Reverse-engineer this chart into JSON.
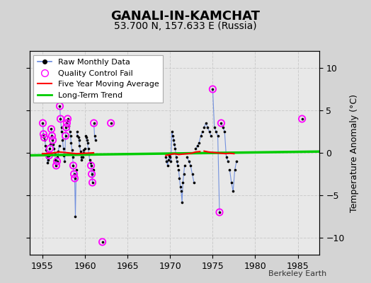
{
  "title": "GANALI-IN-KAMCHAT",
  "subtitle": "53.700 N, 157.633 E (Russia)",
  "ylabel": "Temperature Anomaly (°C)",
  "xlabel_credit": "Berkeley Earth",
  "xlim": [
    1953.5,
    1987.5
  ],
  "ylim": [
    -12,
    12
  ],
  "yticks": [
    -10,
    -5,
    0,
    5,
    10
  ],
  "xticks": [
    1955,
    1960,
    1965,
    1970,
    1975,
    1980,
    1985
  ],
  "bg_color": "#d4d4d4",
  "plot_bg_color": "#e8e8e8",
  "raw_segments": [
    [
      [
        1955.04,
        1955.12,
        1955.21,
        1955.29,
        1955.37,
        1955.46,
        1955.54,
        1955.62,
        1955.71,
        1955.79,
        1955.87,
        1955.96
      ],
      [
        3.5,
        2.2,
        1.8,
        1.5,
        0.8,
        0.3,
        -0.5,
        -1.2,
        -0.8,
        -0.3,
        0.5,
        1.0
      ]
    ],
    [
      [
        1956.04,
        1956.12,
        1956.21,
        1956.29,
        1956.37,
        1956.46,
        1956.54,
        1956.62,
        1956.71,
        1956.79,
        1956.87,
        1956.96
      ],
      [
        2.8,
        2.0,
        1.5,
        1.0,
        0.5,
        -0.2,
        -0.8,
        -1.5,
        -1.0,
        -0.5,
        0.2,
        0.8
      ]
    ],
    [
      [
        1957.04,
        1957.12,
        1957.21,
        1957.29,
        1957.37,
        1957.46,
        1957.54,
        1957.62,
        1957.71,
        1957.79,
        1957.87,
        1957.96
      ],
      [
        5.5,
        4.0,
        3.0,
        2.5,
        1.5,
        0.5,
        -0.3,
        -1.0,
        2.0,
        3.0,
        3.5,
        4.0
      ]
    ],
    [
      [
        1958.04,
        1958.12,
        1958.21,
        1958.29,
        1958.37,
        1958.46,
        1958.54,
        1958.62,
        1958.71,
        1958.79,
        1958.87,
        1958.96
      ],
      [
        3.8,
        3.2,
        2.5,
        2.0,
        1.2,
        0.3,
        -0.5,
        -1.5,
        -2.5,
        -3.0,
        -7.5,
        -2.0
      ]
    ],
    [
      [
        1959.04,
        1959.12,
        1959.21,
        1959.29,
        1959.37,
        1959.46,
        1959.54,
        1959.62,
        1959.71,
        1959.79,
        1959.87,
        1959.96
      ],
      [
        2.5,
        2.0,
        1.8,
        1.5,
        0.8,
        0.2,
        -0.5,
        -0.8,
        -0.5,
        0.0,
        0.3,
        0.5
      ]
    ],
    [
      [
        1960.04,
        1960.12,
        1960.21,
        1960.29,
        1960.37,
        1960.46,
        1960.54,
        1960.62,
        1960.71,
        1960.79,
        1960.87,
        1960.96
      ],
      [
        2.0,
        1.8,
        1.5,
        1.2,
        0.5,
        -0.2,
        -0.8,
        -1.2,
        -1.5,
        -2.5,
        -3.5,
        -2.0
      ]
    ],
    [
      [
        1961.04,
        1961.12,
        1961.21
      ],
      [
        3.5,
        2.0,
        1.5
      ]
    ],
    [
      [
        1962.04
      ],
      [
        -10.5
      ]
    ],
    [
      [
        1963.04
      ],
      [
        3.5
      ]
    ],
    [
      [
        1969.5,
        1969.6,
        1969.7,
        1969.8,
        1969.9
      ],
      [
        -0.5,
        -1.0,
        -1.5,
        -0.8,
        -0.3
      ]
    ],
    [
      [
        1970.0,
        1970.1,
        1970.2,
        1970.3,
        1970.4,
        1970.5,
        1970.6,
        1970.7,
        1970.8,
        1970.9
      ],
      [
        -0.5,
        -1.0,
        2.5,
        2.0,
        1.5,
        1.0,
        0.5,
        -0.5,
        -1.0,
        -1.5
      ]
    ],
    [
      [
        1971.0,
        1971.1,
        1971.2,
        1971.3,
        1971.4,
        1971.5,
        1971.6,
        1971.7
      ],
      [
        -2.0,
        -3.0,
        -4.0,
        -4.5,
        -5.8,
        -3.5,
        -2.5,
        -1.5
      ]
    ],
    [
      [
        1972.0,
        1972.2,
        1972.4,
        1972.6,
        1972.8
      ],
      [
        -0.5,
        -1.0,
        -1.5,
        -2.5,
        -3.5
      ]
    ],
    [
      [
        1973.0,
        1973.2,
        1973.4,
        1973.6,
        1973.8
      ],
      [
        0.5,
        0.8,
        1.2,
        2.0,
        2.5
      ]
    ],
    [
      [
        1974.0,
        1974.2,
        1974.4,
        1974.6,
        1974.8
      ],
      [
        3.0,
        3.5,
        3.0,
        2.5,
        2.0
      ]
    ],
    [
      [
        1975.0,
        1975.2,
        1975.4,
        1975.6,
        1975.8
      ],
      [
        7.5,
        3.0,
        2.5,
        2.0,
        -7.0
      ]
    ],
    [
      [
        1976.0,
        1976.2,
        1976.4,
        1976.6,
        1976.8
      ],
      [
        3.5,
        3.0,
        2.5,
        -0.5,
        -1.0
      ]
    ],
    [
      [
        1977.0,
        1977.2,
        1977.4,
        1977.6,
        1977.8
      ],
      [
        -2.0,
        -3.5,
        -4.5,
        -2.0,
        -1.0
      ]
    ],
    [
      [
        1985.5
      ],
      [
        4.0
      ]
    ]
  ],
  "qc_fail_points": [
    [
      1955.04,
      3.5
    ],
    [
      1955.12,
      2.2
    ],
    [
      1955.21,
      1.8
    ],
    [
      1955.79,
      -0.3
    ],
    [
      1955.87,
      0.5
    ],
    [
      1956.04,
      2.8
    ],
    [
      1956.12,
      2.0
    ],
    [
      1956.21,
      1.5
    ],
    [
      1956.62,
      -1.5
    ],
    [
      1956.71,
      -1.0
    ],
    [
      1957.04,
      5.5
    ],
    [
      1957.12,
      4.0
    ],
    [
      1957.71,
      2.0
    ],
    [
      1957.79,
      3.0
    ],
    [
      1957.87,
      3.5
    ],
    [
      1957.96,
      4.0
    ],
    [
      1958.62,
      -1.5
    ],
    [
      1958.71,
      -2.5
    ],
    [
      1958.79,
      -3.0
    ],
    [
      1960.71,
      -1.5
    ],
    [
      1960.79,
      -2.5
    ],
    [
      1960.87,
      -3.5
    ],
    [
      1961.04,
      3.5
    ],
    [
      1962.04,
      -10.5
    ],
    [
      1963.04,
      3.5
    ],
    [
      1975.0,
      7.5
    ],
    [
      1975.8,
      -7.0
    ],
    [
      1976.0,
      3.5
    ],
    [
      1985.5,
      4.0
    ]
  ],
  "trend_x": [
    1953.5,
    1987.5
  ],
  "trend_y": [
    -0.3,
    0.15
  ],
  "ma_x": [
    1955.0,
    1956.0,
    1957.0,
    1958.0,
    1959.0,
    1960.0,
    1961.0,
    1969.5,
    1970.0,
    1970.5,
    1971.0,
    1971.5,
    1972.0,
    1972.5,
    1973.0,
    1973.5,
    1974.0,
    1974.5,
    1975.0,
    1975.5,
    1976.0,
    1976.5,
    1977.0,
    1977.5
  ],
  "ma_y": [
    -0.1,
    -0.05,
    0.1,
    0.0,
    -0.1,
    -0.05,
    0.0,
    -0.3,
    -0.2,
    -0.1,
    -0.2,
    -0.15,
    -0.1,
    -0.05,
    0.1,
    0.15,
    0.2,
    0.1,
    0.05,
    0.0,
    -0.05,
    -0.1,
    -0.05,
    -0.1
  ],
  "line_color": "#6688dd",
  "dot_color": "#000000",
  "qc_color": "#ff00ff",
  "trend_color": "#00cc00",
  "ma_color": "#ff0000",
  "grid_color": "#cccccc",
  "title_fontsize": 13,
  "subtitle_fontsize": 10,
  "legend_fontsize": 8
}
